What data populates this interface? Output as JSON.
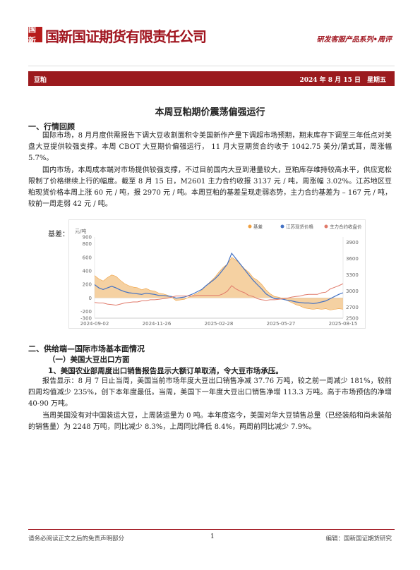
{
  "header": {
    "logo_mark": "国新",
    "company": "国新国证期货有限责任公司",
    "series": "研发客服产品系列•周评"
  },
  "banner": {
    "category": "豆粕",
    "date": "2024 年 8 月 15 日　星期五"
  },
  "title": "本周豆粕期价震荡偏强运行",
  "section1": {
    "heading": "一、行情回顾",
    "para1": "国际市场，8 月月度供需报告下调大豆收割面积令美国新作产量下调超市场预期，期末库存下调至三年低点对美盘大豆提供较强支撑。本周 CBOT 大豆期价偏强运行， 11 月大豆期货合约收于 1042.75 美分/蒲式耳，周涨幅 5.7%。",
    "para2": "国内市场，本周成本端对市场提供较强支撑，不过目前国内大豆到港量较大，豆粕库存维持较高水平，供应宽松限制了价格继续上行的幅度。截至 8 月 15 日，M2601 主力合约收报 3137 元 / 吨，周涨幅 3.02%。江苏地区豆粕现货价格本周上涨 60 元 / 吨，报 2970 元 / 吨。本周豆粕的基差呈现走弱态势，主力合约基差为 – 167 元 / 吨，较前一周走弱 42 元 / 吨。",
    "basis_label": "基差："
  },
  "chart_data": {
    "type": "area+line",
    "y_unit_left": "元/吨",
    "legend": [
      "基差",
      "江苏现货价格",
      "主力合约收盘价"
    ],
    "colors": {
      "basis": "#f2c283",
      "basis_line": "#f0a040",
      "spot": "#4472c4",
      "futures": "#e07a6a"
    },
    "x_ticks": [
      "2024-09-02",
      "2024-11-26",
      "2025-02-28",
      "2025-05-27",
      "2025-08-15"
    ],
    "y_left_ticks": [
      -300,
      -200,
      0,
      200,
      400,
      600,
      800,
      900
    ],
    "y_left_range": [
      -300,
      900
    ],
    "y_right_ticks": [
      2500,
      2700,
      3000,
      3300,
      3600,
      3900
    ],
    "y_right_range": [
      2500,
      4000
    ],
    "basis": [
      330,
      280,
      250,
      300,
      340,
      320,
      260,
      210,
      180,
      160,
      150,
      120,
      140,
      110,
      100,
      70,
      60,
      40,
      10,
      -40,
      -30,
      -20,
      10,
      40,
      70,
      110,
      180,
      240,
      300,
      380,
      450,
      500,
      600,
      560,
      500,
      430,
      380,
      300,
      260,
      200,
      120,
      60,
      20,
      10,
      -10,
      -40,
      -70,
      -100,
      -120,
      -150,
      -160,
      -170,
      -160,
      -170,
      -160,
      -180,
      -170,
      -160,
      -167
    ],
    "spot": [
      3120,
      3060,
      3030,
      3060,
      3090,
      3060,
      3020,
      2990,
      2970,
      2960,
      2950,
      2940,
      2960,
      2950,
      2940,
      2920,
      2920,
      2910,
      2900,
      2870,
      2880,
      2890,
      2920,
      2950,
      2990,
      3030,
      3100,
      3160,
      3220,
      3300,
      3400,
      3500,
      3700,
      3600,
      3500,
      3400,
      3300,
      3200,
      3120,
      3040,
      2950,
      2900,
      2860,
      2860,
      2850,
      2830,
      2820,
      2800,
      2790,
      2780,
      2780,
      2770,
      2780,
      2800,
      2820,
      2860,
      2900,
      2940,
      2970
    ],
    "futures": [
      2790,
      2780,
      2780,
      2760,
      2750,
      2740,
      2760,
      2780,
      2790,
      2800,
      2800,
      2820,
      2820,
      2840,
      2840,
      2850,
      2860,
      2870,
      2890,
      2910,
      2910,
      2910,
      2910,
      2910,
      2920,
      2920,
      2920,
      2920,
      2920,
      2920,
      2950,
      3000,
      3100,
      3040,
      3000,
      2970,
      2920,
      2900,
      2860,
      2840,
      2830,
      2840,
      2840,
      2850,
      2860,
      2870,
      2890,
      2900,
      2910,
      2930,
      2940,
      2940,
      2940,
      2970,
      2980,
      3040,
      3070,
      3100,
      3137
    ]
  },
  "section2": {
    "heading": "二、供给端—国际市场基本面情况",
    "sub1": "（一）美国大豆出口方面",
    "sub1_1": "1、美国农业部周度出口销售报告显示大额订单取消，令大豆市场承压。",
    "para1": "报告显示：8 月 7 日止当周，美国当前市场年度大豆出口销售净减 37.76 万吨，较之前一周减少 181%，较前四周均值减少 235%，创下本年度最低。当周，美国下一年度大豆出口销售净增 113.3 万吨。高于市场预估的净增 40-90 万吨。",
    "para2": "当周美国没有对中国装运大豆，上周装运量为 0 吨。本年度迄今，美国对华大豆销售总量（已经装船和尚未装船的销售量）为 2248 万吨，同比减少 8.3%，上周同比降低 8.4%，两周前同比减少 7.9%。"
  },
  "footer": {
    "disclaimer": "请务必阅读正文之后的免责声明部分",
    "page": "1",
    "editor": "编辑：国新国证期货研究"
  }
}
